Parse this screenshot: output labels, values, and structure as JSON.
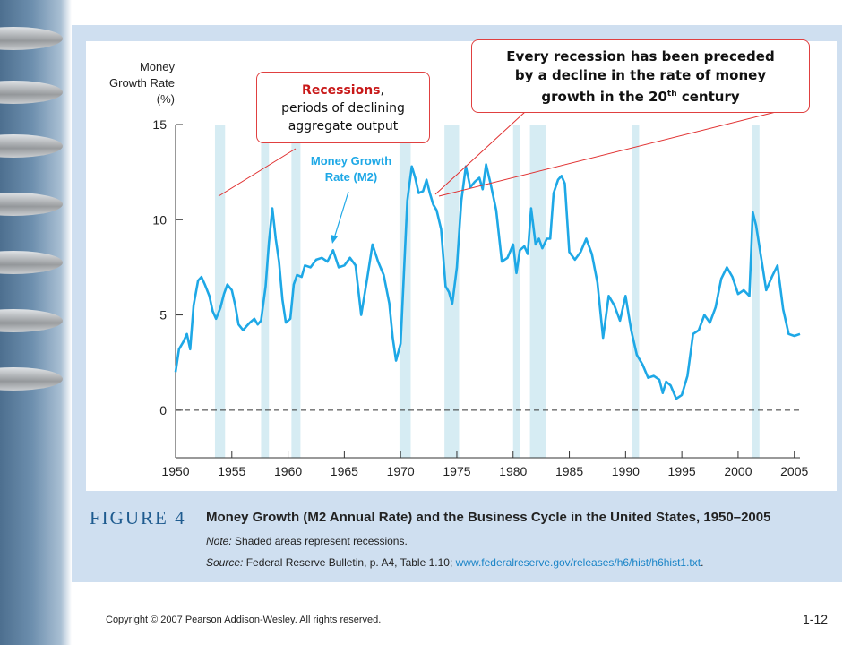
{
  "chart_data": {
    "type": "line",
    "ylabel": [
      "Money",
      "Growth Rate",
      "(%)"
    ],
    "series_label": [
      "Money Growth",
      "Rate (M2)"
    ],
    "xlim": [
      1950,
      2005.5
    ],
    "ylim": [
      -2.5,
      15
    ],
    "x_ticks": [
      1950,
      1955,
      1960,
      1965,
      1970,
      1975,
      1980,
      1985,
      1990,
      1995,
      2000,
      2005
    ],
    "y_ticks": [
      0,
      5,
      10,
      15
    ],
    "zero_line": "dashed",
    "recessions": [
      [
        1953.5,
        1954.4
      ],
      [
        1957.6,
        1958.3
      ],
      [
        1960.3,
        1961.1
      ],
      [
        1969.9,
        1970.9
      ],
      [
        1973.9,
        1975.2
      ],
      [
        1980.0,
        1980.6
      ],
      [
        1981.5,
        1982.9
      ],
      [
        1990.6,
        1991.2
      ],
      [
        2001.2,
        2001.9
      ]
    ],
    "series": [
      {
        "color": "#1ea8e6",
        "x": [
          1950.0,
          1950.3,
          1950.7,
          1951.0,
          1951.3,
          1951.6,
          1952.0,
          1952.3,
          1952.6,
          1953.0,
          1953.3,
          1953.6,
          1954.0,
          1954.3,
          1954.6,
          1955.0,
          1955.3,
          1955.6,
          1956.0,
          1956.3,
          1956.6,
          1957.0,
          1957.3,
          1957.6,
          1958.0,
          1958.3,
          1958.6,
          1958.9,
          1959.2,
          1959.5,
          1959.8,
          1960.2,
          1960.5,
          1960.8,
          1961.2,
          1961.5,
          1962.0,
          1962.5,
          1963.0,
          1963.5,
          1964.0,
          1964.5,
          1965.0,
          1965.5,
          1966.0,
          1966.5,
          1967.0,
          1967.5,
          1968.0,
          1968.5,
          1969.0,
          1969.3,
          1969.6,
          1970.0,
          1970.3,
          1970.6,
          1971.0,
          1971.3,
          1971.6,
          1972.0,
          1972.3,
          1972.6,
          1972.9,
          1973.2,
          1973.6,
          1974.0,
          1974.3,
          1974.6,
          1975.0,
          1975.4,
          1975.8,
          1976.2,
          1976.6,
          1977.0,
          1977.3,
          1977.6,
          1978.0,
          1978.5,
          1979.0,
          1979.5,
          1980.0,
          1980.3,
          1980.6,
          1981.0,
          1981.3,
          1981.6,
          1982.0,
          1982.3,
          1982.6,
          1983.0,
          1983.3,
          1983.6,
          1984.0,
          1984.3,
          1984.6,
          1985.0,
          1985.5,
          1986.0,
          1986.5,
          1987.0,
          1987.5,
          1988.0,
          1988.5,
          1989.0,
          1989.5,
          1990.0,
          1990.5,
          1991.0,
          1991.5,
          1992.0,
          1992.5,
          1993.0,
          1993.3,
          1993.6,
          1994.0,
          1994.5,
          1995.0,
          1995.5,
          1996.0,
          1996.5,
          1997.0,
          1997.5,
          1998.0,
          1998.5,
          1999.0,
          1999.5,
          2000.0,
          2000.5,
          2001.0,
          2001.3,
          2001.6,
          2002.0,
          2002.5,
          2003.0,
          2003.5,
          2004.0,
          2004.5,
          2005.0,
          2005.5
        ],
        "values": [
          2.0,
          3.2,
          3.6,
          4.0,
          3.2,
          5.5,
          6.8,
          7.0,
          6.6,
          6.0,
          5.2,
          4.8,
          5.4,
          6.1,
          6.6,
          6.3,
          5.5,
          4.5,
          4.2,
          4.4,
          4.6,
          4.8,
          4.5,
          4.7,
          6.5,
          8.8,
          10.6,
          9.0,
          7.8,
          5.8,
          4.6,
          4.8,
          6.6,
          7.1,
          7.0,
          7.6,
          7.5,
          7.9,
          8.0,
          7.8,
          8.4,
          7.5,
          7.6,
          8.0,
          7.6,
          5.0,
          6.8,
          8.7,
          7.8,
          7.1,
          5.6,
          3.8,
          2.6,
          3.5,
          7.2,
          11.0,
          12.8,
          12.2,
          11.4,
          11.5,
          12.1,
          11.4,
          10.8,
          10.5,
          9.5,
          6.5,
          6.2,
          5.6,
          7.5,
          11.0,
          12.8,
          11.7,
          12.0,
          12.2,
          11.6,
          12.9,
          11.9,
          10.5,
          7.8,
          8.0,
          8.7,
          7.2,
          8.4,
          8.6,
          8.2,
          10.6,
          8.7,
          9.0,
          8.5,
          9.0,
          9.0,
          11.4,
          12.1,
          12.3,
          11.9,
          8.3,
          7.9,
          8.3,
          9.0,
          8.2,
          6.7,
          3.8,
          6.0,
          5.5,
          4.7,
          6.0,
          4.2,
          2.9,
          2.4,
          1.7,
          1.8,
          1.6,
          0.9,
          1.5,
          1.3,
          0.6,
          0.8,
          1.8,
          4.0,
          4.2,
          5.0,
          4.6,
          5.4,
          6.9,
          7.5,
          7.0,
          6.1,
          6.3,
          6.0,
          10.4,
          9.7,
          8.2,
          6.3,
          7.0,
          7.6,
          5.3,
          4.0,
          3.9,
          4.0
        ]
      }
    ]
  },
  "annotations": {
    "left_red": "Recessions",
    "left_rest_1": ",",
    "left_line2": "periods of declining",
    "left_line3": "aggregate output",
    "right_line1": "Every recession has been preceded",
    "right_line2": "by a decline in the rate of money",
    "right_line3a": "growth in the 20",
    "right_sup": "th",
    "right_line3b": " century"
  },
  "figure": {
    "label": "FIGURE 4",
    "title": "Money Growth (M2 Annual Rate) and the Business Cycle in the United States, 1950–2005",
    "note_label": "Note:",
    "note_text": " Shaded areas represent recessions.",
    "source_label": "Source:",
    "source_text": " Federal Reserve Bulletin, p. A4, Table 1.10; ",
    "source_url": "www.federalreserve.gov/releases/h6/hist/h6hist1.txt",
    "source_end": "."
  },
  "footer": {
    "copyright": "Copyright © 2007 Pearson Addison-Wesley. All rights reserved.",
    "slide_number": "1-12"
  },
  "colors": {
    "line": "#1ea8e6",
    "recession": "#d6ecf3",
    "annotation_border": "#e04040",
    "annotation_text_red": "#c81818",
    "panel": "#cfdff0",
    "figure_label": "#1e5b8f",
    "url": "#1a84c7"
  }
}
